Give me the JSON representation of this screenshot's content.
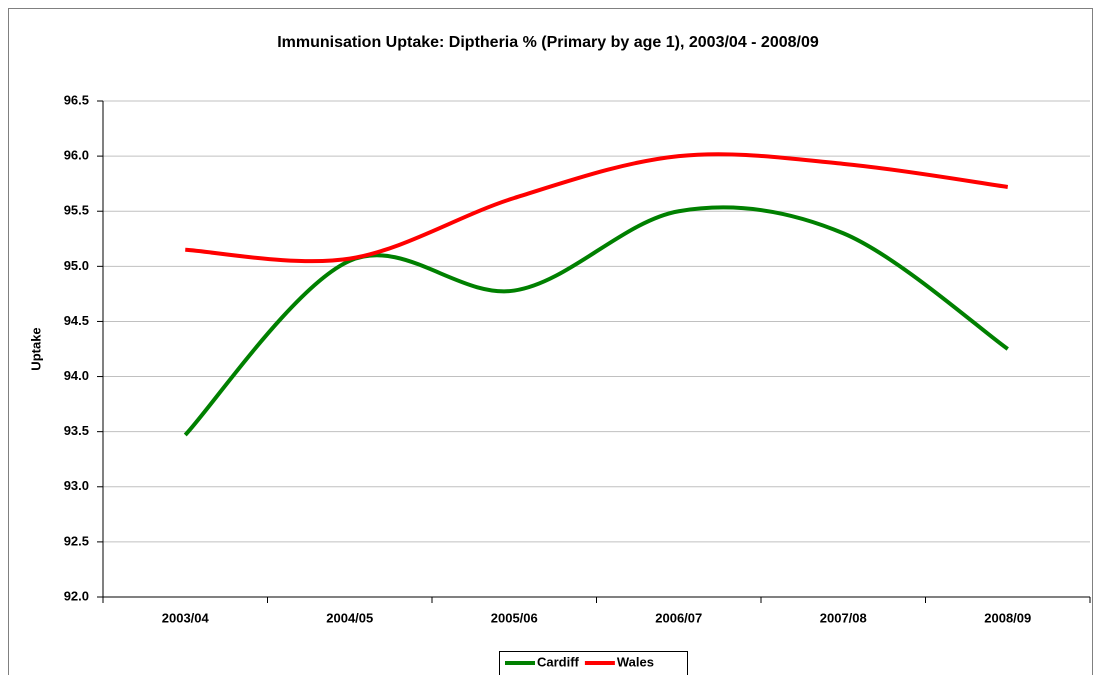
{
  "chart_data": {
    "type": "line",
    "title": "Immunisation Uptake: Diptheria % (Primary by age 1), 2003/04 - 2008/09",
    "y_label": "Uptake",
    "categories": [
      "2003/04",
      "2004/05",
      "2005/06",
      "2006/07",
      "2007/08",
      "2008/09"
    ],
    "series": [
      {
        "name": "Cardiff",
        "color": "#008000",
        "values": [
          93.47,
          95.05,
          94.78,
          95.5,
          95.3,
          94.25
        ]
      },
      {
        "name": "Wales",
        "color": "#ff0000",
        "values": [
          95.15,
          95.07,
          95.62,
          96.0,
          95.93,
          95.72
        ]
      }
    ],
    "ylim": [
      92,
      96.5
    ],
    "yticks": [
      {
        "value": 92,
        "label": "92.0"
      },
      92.5,
      {
        "value": 93,
        "label": "93.0"
      },
      93.5,
      {
        "value": 94,
        "label": "94.0"
      },
      94.5,
      {
        "value": 95,
        "label": "95.0"
      },
      95.5,
      {
        "value": 96,
        "label": "96.0"
      },
      96.5
    ],
    "grid": true,
    "smooth": true,
    "legend": "bottom"
  }
}
